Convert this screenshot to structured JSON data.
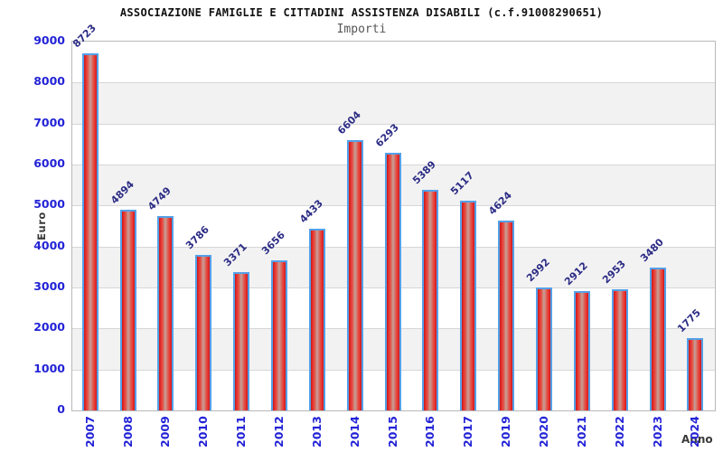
{
  "header": {
    "title": "ASSOCIAZIONE FAMIGLIE E CITTADINI ASSISTENZA DISABILI (c.f.91008290651)",
    "subtitle": "Importi"
  },
  "chart_data": {
    "type": "bar",
    "title": "ASSOCIAZIONE FAMIGLIE E CITTADINI ASSISTENZA DISABILI (c.f.91008290651)",
    "subtitle": "Importi",
    "xlabel": "Anno",
    "ylabel": "Euro",
    "categories": [
      "2007",
      "2008",
      "2009",
      "2010",
      "2011",
      "2012",
      "2013",
      "2014",
      "2015",
      "2016",
      "2017",
      "2019",
      "2020",
      "2021",
      "2022",
      "2023",
      "2024"
    ],
    "values": [
      8723,
      4894,
      4749,
      3786,
      3371,
      3656,
      4433,
      6604,
      6293,
      5389,
      5117,
      4624,
      2992,
      2912,
      2953,
      3480,
      1775
    ],
    "ylim": [
      0,
      9000
    ],
    "ytick_step": 1000,
    "yticks": [
      0,
      1000,
      2000,
      3000,
      4000,
      5000,
      6000,
      7000,
      8000,
      9000
    ],
    "grid": "horizontal-bands",
    "legend": "none",
    "bar_value_labels_rotation_deg": -45,
    "xtick_rotation_deg": -90,
    "colors": {
      "bar_fill_edge": "#c41a1a",
      "bar_fill_mid": "#c79d97",
      "bar_border": "#54a0e8",
      "value_label": "#2b2b85",
      "tick_label": "#2323d7",
      "band_gray": "#f2f2f2",
      "gridline": "#d6d6d6",
      "title": "#111111",
      "subtitle": "#575757",
      "axis_title": "#3a3a3a"
    }
  }
}
